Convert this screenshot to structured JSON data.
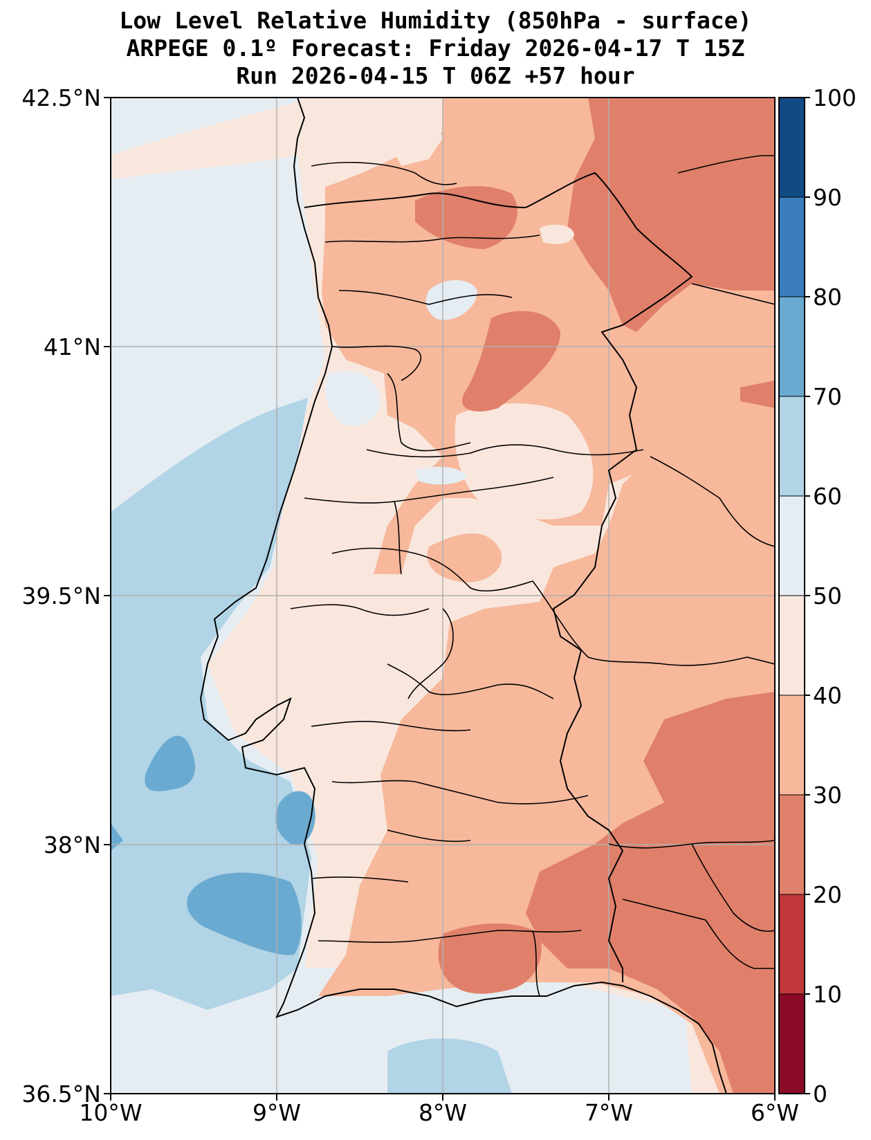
{
  "title": {
    "line1": "Low Level Relative Humidity (850hPa - surface)",
    "line2": "ARPEGE 0.1º Forecast: Friday 2026-04-17 T 15Z",
    "line3": "Run 2026-04-15 T 06Z +57 hour"
  },
  "map": {
    "lat_ticks": [
      "42.5°N",
      "41°N",
      "39.5°N",
      "38°N",
      "36.5°N"
    ],
    "lon_ticks": [
      "10°W",
      "9°W",
      "8°W",
      "7°W",
      "6°W"
    ],
    "extent": {
      "lon": [
        -10,
        -6
      ],
      "lat": [
        36.5,
        42.5
      ]
    },
    "gridlines": true
  },
  "colorbar": {
    "ticks": [
      "0",
      "10",
      "20",
      "30",
      "40",
      "50",
      "60",
      "70",
      "80",
      "90",
      "100"
    ],
    "colors": [
      "#8b0a26",
      "#c13639",
      "#e0806a",
      "#f7b89c",
      "#f9e7dd",
      "#e5edf3",
      "#b1d4e6",
      "#6aaad1",
      "#3a7fbc",
      "#124a86"
    ]
  },
  "palette": {
    "land_default": "#f9e7dd",
    "dry_30_40": "#f7b89c",
    "dry_20_30": "#e0806a",
    "moist_50_60": "#e5edf3",
    "moist_60_70": "#b1d4e6",
    "moist_70_80": "#6aaad1"
  }
}
